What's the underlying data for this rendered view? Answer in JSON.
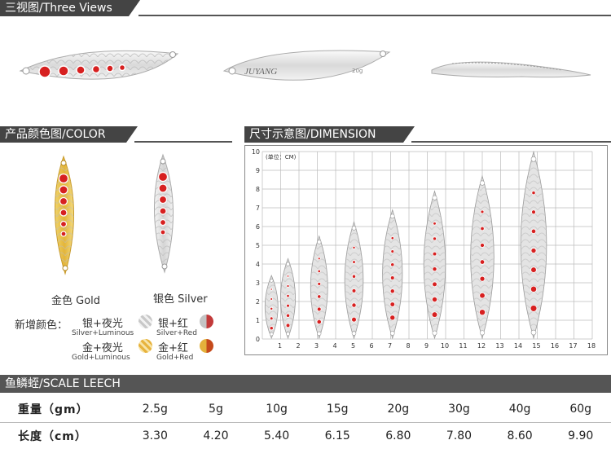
{
  "sections": {
    "three_views": "三视图/Three Views",
    "color": "产品颜色图/COLOR",
    "dimension": "尺寸示意图/DIMENSION",
    "scale": "鱼鳞蛭/SCALE LEECH"
  },
  "views": {
    "brand": "JUYANG",
    "weight_mark": "20g"
  },
  "colors": {
    "gold_label": "金色 Gold",
    "silver_label": "银色 Silver",
    "new_prefix": "新增颜色：",
    "options": [
      {
        "cn": "银+夜光",
        "en": "Silver+Luminous",
        "swatch": "#c8c8c8"
      },
      {
        "cn": "银+红",
        "en": "Silver+Red",
        "swatch": "#b05050"
      },
      {
        "cn": "金+夜光",
        "en": "Gold+Luminous",
        "swatch": "#e7b33d"
      },
      {
        "cn": "金+红",
        "en": "Gold+Red",
        "swatch": "#c85a1e"
      }
    ],
    "gold_hex": "#e9c544",
    "silver_hex": "#e6e6e6",
    "red_hex": "#d72020"
  },
  "dimension": {
    "unit_label": "(单位：CM)",
    "y_ticks": [
      "0",
      "1",
      "2",
      "3",
      "4",
      "5",
      "6",
      "7",
      "8",
      "9",
      "10"
    ],
    "x_ticks": [
      "1",
      "2",
      "3",
      "4",
      "5",
      "6",
      "7",
      "8",
      "9",
      "10",
      "11",
      "12",
      "13",
      "14",
      "15",
      "16",
      "17",
      "18"
    ]
  },
  "table": {
    "weight_header": "重量（gm）",
    "length_header": "长度（cm）",
    "weights": [
      "2.5g",
      "5g",
      "10g",
      "15g",
      "20g",
      "30g",
      "40g",
      "60g"
    ],
    "lengths": [
      "3.30",
      "4.20",
      "5.40",
      "6.15",
      "6.80",
      "7.80",
      "8.60",
      "9.90"
    ]
  }
}
